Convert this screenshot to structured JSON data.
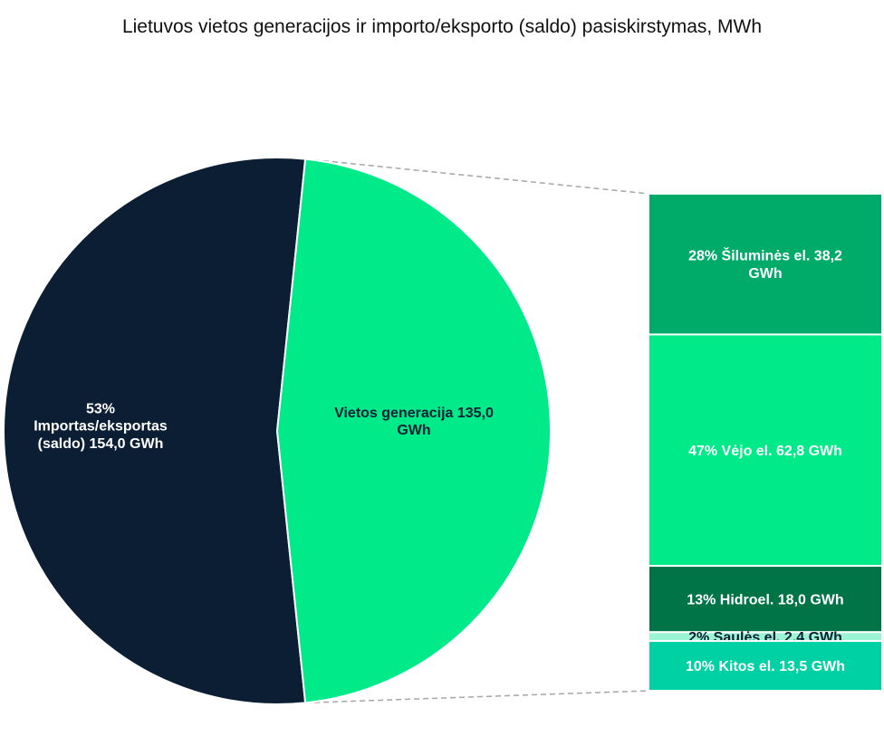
{
  "chart_data": {
    "type": "bar-of-pie",
    "title": "Lietuvos vietos generacijos ir importo/eksporto (saldo) pasiskirstymas, MWh",
    "unit": "GWh",
    "pie": [
      {
        "label_lines": [
          "53%",
          "Importas/eksportas",
          "(saldo)  154,0 GWh"
        ],
        "value": 154.0,
        "percent": 53,
        "color": "#0b1e33",
        "text_color": "#ffffff"
      },
      {
        "label_lines": [
          "Vietos generacija   135,0",
          "GWh"
        ],
        "value": 135.0,
        "percent": 47,
        "color": "#00ea8a",
        "text_color": "#0b1e33"
      }
    ],
    "breakdown_of": "Vietos generacija",
    "breakdown": [
      {
        "label_lines": [
          "28% Šiluminės el.  38,2",
          "GWh"
        ],
        "value": 38.2,
        "percent": 28,
        "color": "#00ab6a",
        "text_color": "#ffffff"
      },
      {
        "label_lines": [
          "47% Vėjo el.  62,8 GWh"
        ],
        "value": 62.8,
        "percent": 47,
        "color": "#00ea8a",
        "text_color": "#ffffff"
      },
      {
        "label_lines": [
          "13% Hidroel.  18,0 GWh"
        ],
        "value": 18.0,
        "percent": 13,
        "color": "#007447",
        "text_color": "#ffffff"
      },
      {
        "label_lines": [
          "2% Saulės el.  2,4 GWh"
        ],
        "value": 2.4,
        "percent": 2,
        "color": "#9bf5d4",
        "text_color": "#0b1e33"
      },
      {
        "label_lines": [
          "10% Kitos el.  13,5 GWh"
        ],
        "value": 13.5,
        "percent": 10,
        "color": "#00d1a4",
        "text_color": "#ffffff"
      }
    ]
  }
}
